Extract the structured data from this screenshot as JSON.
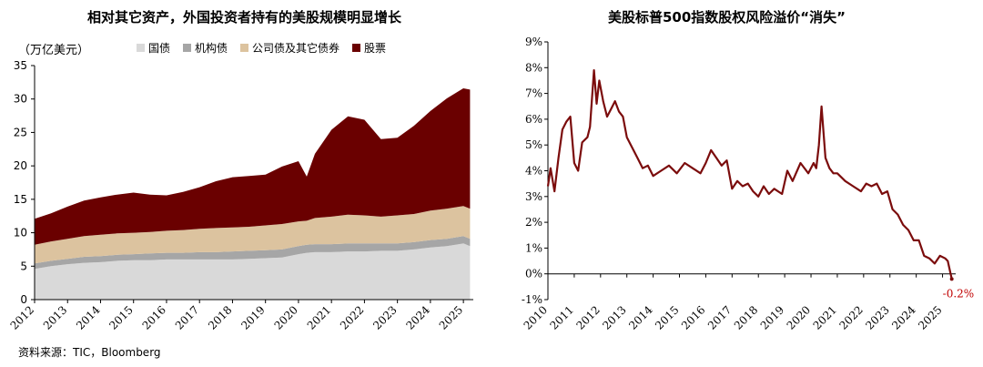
{
  "source_text": "资料来源：TIC，Bloomberg",
  "chart_data": [
    {
      "type": "area",
      "title": "相对其它资产，外国投资者持有的美股规模明显增长",
      "unit_label": "（万亿美元）",
      "ylim": [
        0,
        35
      ],
      "y_ticks": [
        "0",
        "5",
        "10",
        "15",
        "20",
        "25",
        "30",
        "35"
      ],
      "x_ticks": [
        "2012",
        "2013",
        "2014",
        "2015",
        "2016",
        "2017",
        "2018",
        "2019",
        "2020",
        "2021",
        "2022",
        "2023",
        "2024",
        "2025"
      ],
      "x": [
        2012.0,
        2012.5,
        2013.0,
        2013.5,
        2014.0,
        2014.5,
        2015.0,
        2015.5,
        2016.0,
        2016.5,
        2017.0,
        2017.5,
        2018.0,
        2018.5,
        2019.0,
        2019.5,
        2020.0,
        2020.25,
        2020.5,
        2021.0,
        2021.5,
        2022.0,
        2022.5,
        2023.0,
        2023.5,
        2024.0,
        2024.5,
        2025.0,
        2025.2
      ],
      "stacked": true,
      "legend_position": "top",
      "series": [
        {
          "name": "国债",
          "color": "#d9d9d9",
          "values": [
            4.6,
            5.0,
            5.3,
            5.5,
            5.6,
            5.8,
            5.9,
            5.9,
            6.0,
            6.0,
            6.0,
            6.0,
            6.0,
            6.1,
            6.2,
            6.3,
            6.8,
            7.0,
            7.1,
            7.1,
            7.2,
            7.2,
            7.3,
            7.3,
            7.5,
            7.8,
            8.0,
            8.4,
            8.0
          ]
        },
        {
          "name": "机构债",
          "color": "#a6a6a6",
          "values": [
            0.8,
            0.8,
            0.8,
            0.9,
            0.9,
            0.9,
            0.9,
            1.0,
            1.0,
            1.0,
            1.1,
            1.1,
            1.2,
            1.2,
            1.2,
            1.2,
            1.2,
            1.2,
            1.2,
            1.2,
            1.2,
            1.2,
            1.1,
            1.1,
            1.1,
            1.1,
            1.1,
            1.1,
            1.1
          ]
        },
        {
          "name": "公司债及其它债券",
          "color": "#dcc39f",
          "values": [
            2.8,
            2.9,
            3.0,
            3.1,
            3.2,
            3.2,
            3.2,
            3.2,
            3.3,
            3.4,
            3.5,
            3.6,
            3.6,
            3.6,
            3.7,
            3.8,
            3.7,
            3.6,
            3.9,
            4.1,
            4.3,
            4.2,
            4.0,
            4.2,
            4.2,
            4.4,
            4.5,
            4.5,
            4.5
          ]
        },
        {
          "name": "股票",
          "color": "#6a0000",
          "values": [
            3.9,
            4.2,
            4.8,
            5.3,
            5.6,
            5.8,
            6.0,
            5.6,
            5.3,
            5.7,
            6.2,
            7.0,
            7.5,
            7.6,
            7.6,
            8.6,
            9.0,
            6.6,
            9.6,
            13.0,
            14.7,
            14.3,
            11.6,
            11.6,
            13.2,
            14.9,
            16.5,
            17.6,
            17.8
          ]
        }
      ]
    },
    {
      "type": "line",
      "title": "美股标普500指数股权风险溢价“消失”",
      "ylim": [
        -1,
        9
      ],
      "y_ticks": [
        "-1%",
        "0%",
        "1%",
        "2%",
        "3%",
        "4%",
        "5%",
        "6%",
        "7%",
        "8%",
        "9%"
      ],
      "x_ticks": [
        "2010",
        "2011",
        "2012",
        "2013",
        "2014",
        "2015",
        "2016",
        "2017",
        "2018",
        "2019",
        "2020",
        "2021",
        "2022",
        "2023",
        "2024",
        "2025"
      ],
      "series": [
        {
          "name": "",
          "color": "#7b0c0c",
          "x": [
            2010.0,
            2010.1,
            2010.25,
            2010.4,
            2010.55,
            2010.7,
            2010.85,
            2011.0,
            2011.15,
            2011.3,
            2011.5,
            2011.6,
            2011.75,
            2011.85,
            2011.95,
            2012.1,
            2012.25,
            2012.4,
            2012.55,
            2012.7,
            2012.85,
            2013.0,
            2013.2,
            2013.4,
            2013.6,
            2013.8,
            2014.0,
            2014.3,
            2014.6,
            2014.9,
            2015.2,
            2015.5,
            2015.8,
            2016.0,
            2016.2,
            2016.4,
            2016.6,
            2016.8,
            2017.0,
            2017.2,
            2017.4,
            2017.6,
            2017.8,
            2018.0,
            2018.2,
            2018.4,
            2018.6,
            2018.9,
            2019.1,
            2019.3,
            2019.6,
            2019.9,
            2020.1,
            2020.2,
            2020.3,
            2020.4,
            2020.55,
            2020.7,
            2020.85,
            2021.0,
            2021.3,
            2021.6,
            2021.9,
            2022.1,
            2022.3,
            2022.5,
            2022.7,
            2022.9,
            2023.1,
            2023.3,
            2023.5,
            2023.7,
            2023.9,
            2024.1,
            2024.3,
            2024.5,
            2024.7,
            2024.9,
            2025.1,
            2025.2,
            2025.35
          ],
          "values": [
            3.4,
            4.1,
            3.2,
            4.5,
            5.6,
            5.9,
            6.1,
            4.3,
            4.0,
            5.1,
            5.3,
            5.7,
            7.9,
            6.6,
            7.5,
            6.7,
            6.1,
            6.4,
            6.7,
            6.3,
            6.1,
            5.3,
            4.9,
            4.5,
            4.1,
            4.2,
            3.8,
            4.0,
            4.2,
            3.9,
            4.3,
            4.1,
            3.9,
            4.3,
            4.8,
            4.5,
            4.2,
            4.4,
            3.3,
            3.6,
            3.4,
            3.5,
            3.2,
            3.0,
            3.4,
            3.1,
            3.3,
            3.1,
            4.0,
            3.6,
            4.3,
            3.9,
            4.3,
            4.1,
            5.0,
            6.5,
            4.5,
            4.1,
            3.9,
            3.9,
            3.6,
            3.4,
            3.2,
            3.5,
            3.4,
            3.5,
            3.1,
            3.2,
            2.5,
            2.3,
            1.9,
            1.7,
            1.3,
            1.3,
            0.7,
            0.6,
            0.4,
            0.7,
            0.6,
            0.5,
            -0.2
          ]
        }
      ],
      "annotation": "-0.2%"
    }
  ]
}
